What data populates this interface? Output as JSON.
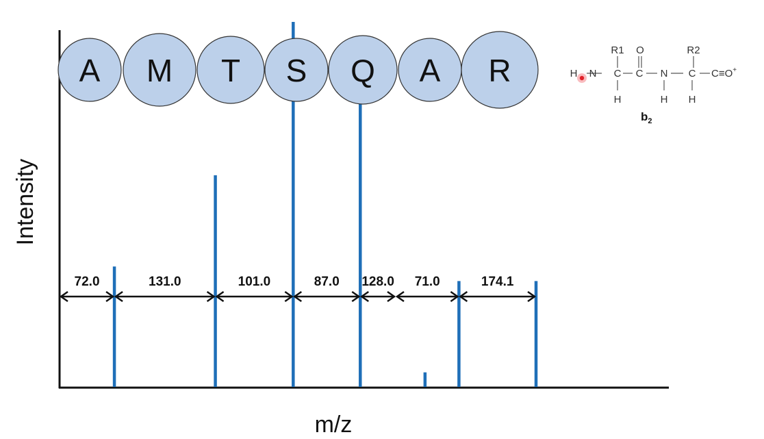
{
  "axes": {
    "x_label": "m/z",
    "y_label": "Intensity"
  },
  "colors": {
    "peak": "#1f6fb8",
    "bubble_fill": "#bcd0ea",
    "bubble_stroke": "#333333",
    "axis": "#111111",
    "cursor": "#e0222a"
  },
  "peptide": {
    "residues": [
      "A",
      "M",
      "T",
      "S",
      "Q",
      "A",
      "R"
    ]
  },
  "spectrum": {
    "peaks": [
      {
        "mz": 72.0,
        "intensity": 0.33
      },
      {
        "mz": 203.0,
        "intensity": 0.58
      },
      {
        "mz": 304.0,
        "intensity": 1.0
      },
      {
        "mz": 391.0,
        "intensity": 0.81
      },
      {
        "mz": 475.0,
        "intensity": 0.04
      },
      {
        "mz": 519.0,
        "intensity": 0.29
      },
      {
        "mz": 619.0,
        "intensity": 0.29
      }
    ],
    "gaps": [
      {
        "label": "72.0"
      },
      {
        "label": "131.0"
      },
      {
        "label": "101.0"
      },
      {
        "label": "87.0"
      },
      {
        "label": "128.0"
      },
      {
        "label": "71.0"
      },
      {
        "label": "174.1"
      }
    ]
  },
  "structure": {
    "name": "b",
    "name_subscript": "2",
    "atoms": {
      "r1": "R1",
      "r2": "R2",
      "o": "O",
      "h": "H",
      "n": "N",
      "c": "C",
      "c_terminal": "C≡O",
      "charge": "+"
    }
  }
}
